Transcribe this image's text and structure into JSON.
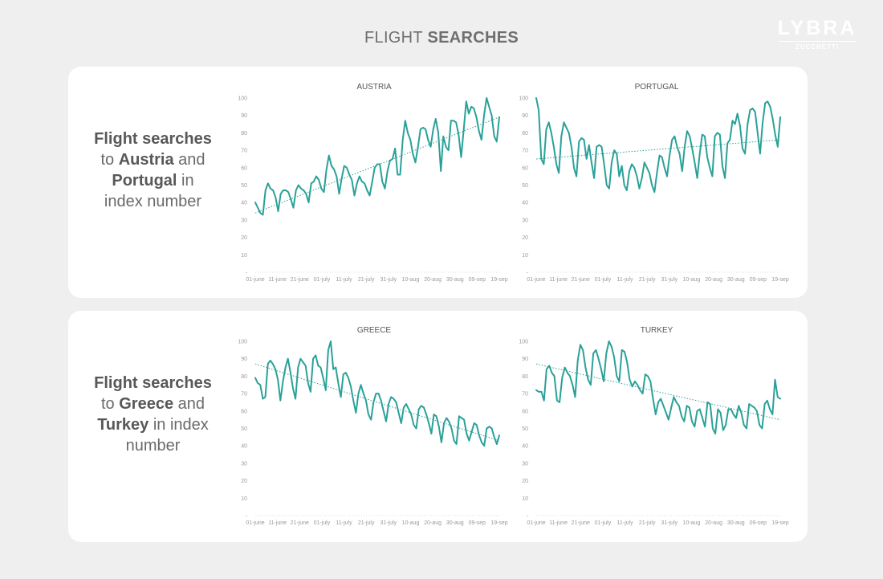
{
  "header": {
    "title_light": "FLIGHT ",
    "title_bold": "SEARCHES"
  },
  "logo": {
    "wordmark": "LYBRA",
    "sub": "ZUCCHETTI"
  },
  "descriptions": {
    "top": {
      "l1": "Flight searches",
      "l2a": "to ",
      "l2b": "Austria",
      "l2c": " and",
      "l3a": "Portugal",
      "l3b": " in",
      "l4": "index number"
    },
    "bottom": {
      "l1": "Flight searches",
      "l2a": "to ",
      "l2b": "Greece",
      "l2c": " and",
      "l3a": "Turkey",
      "l3b": " in index",
      "l4": "number"
    }
  },
  "colors": {
    "series": "#2aa198",
    "panel_bg": "#ffffff",
    "page_bg": "#efefef"
  },
  "chart_data": [
    {
      "id": "austria",
      "type": "line",
      "title": "AUSTRIA",
      "ylim": [
        0,
        100
      ],
      "yticks": [
        "100",
        "90",
        "80",
        "70",
        "60",
        "50",
        "40",
        "30",
        "20",
        "10",
        "-"
      ],
      "xticks": [
        "01-june",
        "11-june",
        "21-june",
        "01-july",
        "11-july",
        "21-july",
        "31-july",
        "10-aug",
        "20-aug",
        "30-aug",
        "09-sep",
        "19-sep"
      ],
      "trendline": [
        34,
        89
      ],
      "values": [
        40,
        37,
        34,
        33,
        47,
        51,
        48,
        47,
        43,
        35,
        45,
        47,
        47,
        46,
        42,
        37,
        47,
        50,
        48,
        47,
        45,
        40,
        51,
        52,
        55,
        53,
        48,
        46,
        59,
        67,
        61,
        59,
        55,
        45,
        54,
        61,
        60,
        56,
        53,
        44,
        51,
        55,
        52,
        51,
        47,
        44,
        52,
        60,
        62,
        62,
        52,
        48,
        58,
        64,
        65,
        71,
        56,
        56,
        76,
        87,
        80,
        76,
        68,
        63,
        72,
        82,
        83,
        82,
        76,
        72,
        82,
        88,
        80,
        58,
        78,
        72,
        70,
        87,
        87,
        86,
        79,
        66,
        82,
        98,
        91,
        95,
        94,
        89,
        81,
        76,
        90,
        100,
        95,
        90,
        78,
        75,
        89
      ]
    },
    {
      "id": "portugal",
      "type": "line",
      "title": "PORTUGAL",
      "ylim": [
        0,
        100
      ],
      "yticks": [
        "100",
        "90",
        "80",
        "70",
        "60",
        "50",
        "40",
        "30",
        "20",
        "10",
        "-"
      ],
      "xticks": [
        "01-june",
        "11-june",
        "21-june",
        "01-july",
        "11-july",
        "21-july",
        "31-july",
        "10-aug",
        "20-aug",
        "30-aug",
        "09-sep",
        "19-sep"
      ],
      "trendline": [
        65,
        76
      ],
      "values": [
        100,
        93,
        65,
        62,
        82,
        86,
        80,
        72,
        62,
        57,
        78,
        86,
        83,
        80,
        72,
        60,
        55,
        75,
        77,
        76,
        65,
        73,
        63,
        54,
        72,
        73,
        72,
        62,
        50,
        48,
        63,
        70,
        68,
        55,
        61,
        50,
        47,
        58,
        62,
        60,
        55,
        48,
        54,
        63,
        60,
        57,
        50,
        46,
        57,
        67,
        66,
        60,
        55,
        67,
        76,
        78,
        72,
        68,
        58,
        72,
        81,
        78,
        71,
        63,
        54,
        68,
        79,
        78,
        66,
        60,
        55,
        78,
        80,
        79,
        61,
        54,
        74,
        76,
        87,
        85,
        91,
        84,
        71,
        68,
        85,
        93,
        94,
        92,
        80,
        68,
        86,
        97,
        98,
        95,
        88,
        79,
        72,
        89
      ]
    },
    {
      "id": "greece",
      "type": "line",
      "title": "GREECE",
      "ylim": [
        0,
        100
      ],
      "yticks": [
        "100",
        "90",
        "80",
        "70",
        "60",
        "50",
        "40",
        "30",
        "20",
        "10",
        "-"
      ],
      "xticks": [
        "01-june",
        "11-june",
        "21-june",
        "01-july",
        "11-july",
        "21-july",
        "31-july",
        "10-aug",
        "20-aug",
        "30-aug",
        "09-sep",
        "19-sep"
      ],
      "trendline": [
        87,
        43
      ],
      "values": [
        79,
        76,
        75,
        67,
        68,
        87,
        89,
        87,
        84,
        78,
        66,
        77,
        85,
        90,
        82,
        73,
        67,
        85,
        90,
        88,
        86,
        76,
        71,
        90,
        92,
        86,
        85,
        79,
        72,
        95,
        100,
        84,
        85,
        76,
        68,
        81,
        82,
        79,
        74,
        66,
        59,
        70,
        75,
        70,
        66,
        58,
        55,
        65,
        70,
        70,
        66,
        60,
        54,
        64,
        68,
        67,
        65,
        59,
        53,
        62,
        64,
        61,
        58,
        52,
        50,
        61,
        63,
        62,
        58,
        53,
        47,
        58,
        57,
        51,
        42,
        53,
        56,
        54,
        50,
        43,
        41,
        57,
        56,
        55,
        47,
        43,
        48,
        53,
        52,
        46,
        42,
        40,
        50,
        51,
        50,
        45,
        41,
        46
      ]
    },
    {
      "id": "turkey",
      "type": "line",
      "title": "TURKEY",
      "ylim": [
        0,
        100
      ],
      "yticks": [
        "100",
        "90",
        "80",
        "70",
        "60",
        "50",
        "40",
        "30",
        "20",
        "10",
        "-"
      ],
      "xticks": [
        "01-june",
        "11-june",
        "21-june",
        "01-july",
        "11-july",
        "21-july",
        "31-july",
        "10-aug",
        "20-aug",
        "30-aug",
        "09-sep",
        "19-sep"
      ],
      "trendline": [
        87,
        55
      ],
      "values": [
        72,
        71,
        71,
        66,
        84,
        86,
        82,
        80,
        66,
        65,
        79,
        85,
        82,
        80,
        75,
        68,
        89,
        98,
        95,
        85,
        78,
        75,
        93,
        95,
        90,
        84,
        77,
        93,
        100,
        97,
        91,
        80,
        77,
        95,
        94,
        88,
        78,
        74,
        77,
        75,
        72,
        70,
        81,
        80,
        77,
        67,
        58,
        65,
        67,
        63,
        59,
        55,
        62,
        68,
        65,
        63,
        57,
        54,
        63,
        62,
        54,
        51,
        60,
        61,
        56,
        51,
        65,
        64,
        50,
        47,
        61,
        59,
        49,
        52,
        61,
        61,
        58,
        56,
        63,
        59,
        52,
        50,
        64,
        63,
        62,
        60,
        52,
        50,
        64,
        66,
        61,
        58,
        78,
        68,
        67
      ]
    }
  ]
}
